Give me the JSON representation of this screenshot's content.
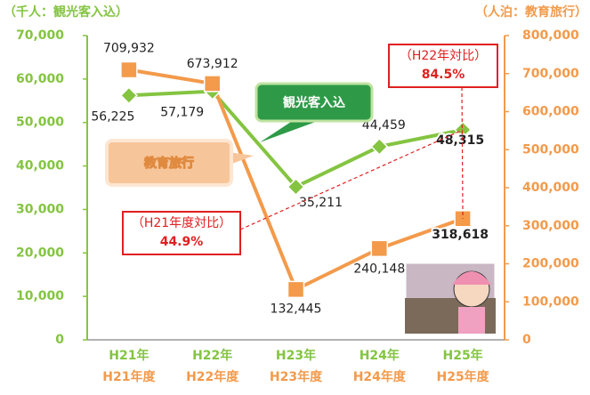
{
  "chart_data": {
    "type": "line",
    "categories": [
      "H21年",
      "H22年",
      "H23年",
      "H24年",
      "H25年"
    ],
    "categories_fiscal": [
      "H21年度",
      "H22年度",
      "H23年度",
      "H24年度",
      "H25年度"
    ],
    "ylabel": "（千人：観光客入込）",
    "y2label": "（人泊：教育旅行）",
    "ylim": [
      0,
      70000
    ],
    "yticks": [
      0,
      {
        "value": 10000,
        "label": "10,000"
      },
      {
        "value": 20000,
        "label": "20,000"
      },
      {
        "value": 30000,
        "label": "30,000"
      },
      {
        "value": 40000,
        "label": "40,000"
      },
      {
        "value": 50000,
        "label": "50,000"
      },
      {
        "value": 60000,
        "label": "60,000"
      },
      {
        "value": 70000,
        "label": "70,000"
      }
    ],
    "y2lim": [
      0,
      800000
    ],
    "y2ticks": [
      0,
      {
        "value": 100000,
        "label": "100,000"
      },
      {
        "value": 200000,
        "label": "200,000"
      },
      {
        "value": 300000,
        "label": "300,000"
      },
      {
        "value": 400000,
        "label": "400,000"
      },
      {
        "value": 500000,
        "label": "500,000"
      },
      {
        "value": 600000,
        "label": "600,000"
      },
      {
        "value": 700000,
        "label": "700,000"
      },
      {
        "value": 800000,
        "label": "800,000"
      }
    ],
    "series": [
      {
        "name": "観光客入込",
        "color": "#84c441",
        "axis": "y",
        "values": [
          56225,
          57179,
          35211,
          44459,
          48315
        ],
        "value_labels": [
          "56,225",
          "57,179",
          "35,211",
          "44,459",
          "48,315"
        ]
      },
      {
        "name": "教育旅行",
        "color": "#f39a4b",
        "axis": "y2",
        "values": [
          709932,
          673912,
          132445,
          240148,
          318618
        ],
        "value_labels": [
          "709,932",
          "673,912",
          "132,445",
          "240,148",
          "318,618"
        ]
      }
    ],
    "annotations": [
      {
        "title": "（H22年対比）",
        "text": "84.5%"
      },
      {
        "title": "（H21年度対比）",
        "text": "44.9%"
      }
    ]
  }
}
